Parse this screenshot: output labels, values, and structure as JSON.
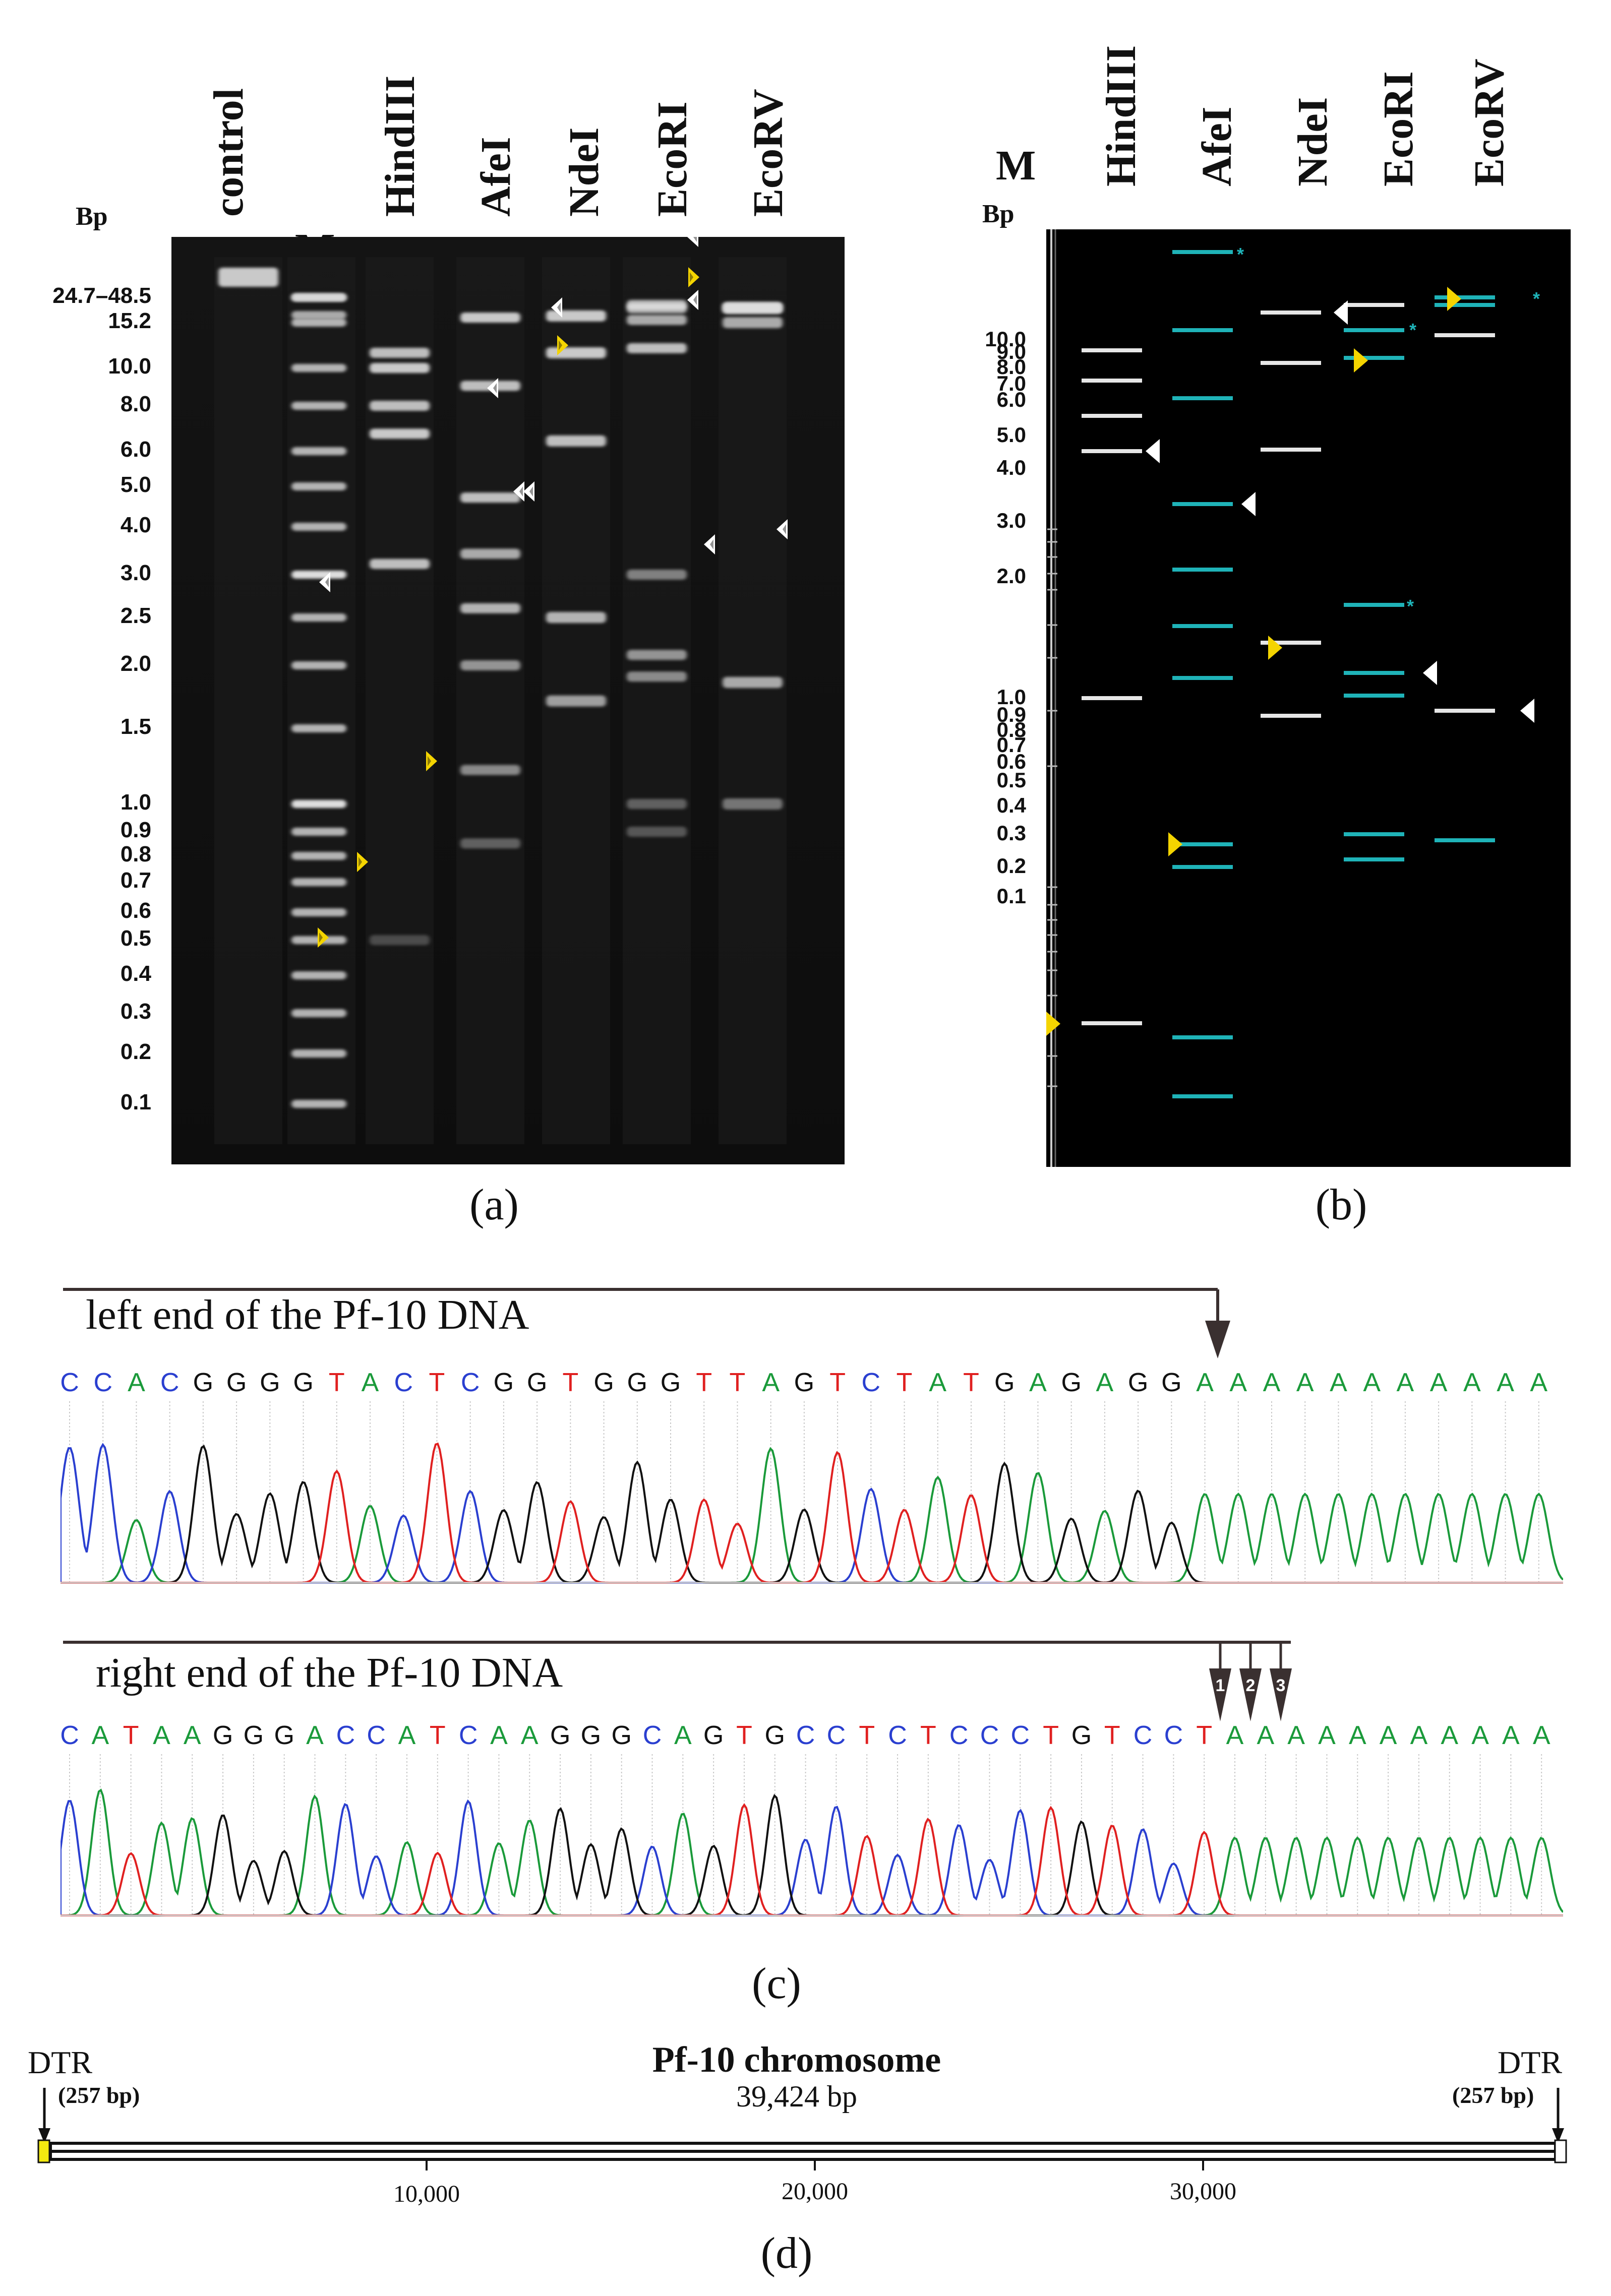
{
  "panels": {
    "a": "(a)",
    "b": "(b)",
    "c": "(c)",
    "d": "(d)"
  },
  "gel_a": {
    "bp_title": "Bp",
    "lanes": [
      "control",
      "M",
      "HindIII",
      "AfeI",
      "NdeI",
      "EcoRI",
      "EcoRV"
    ],
    "bp_labels": [
      "24.7–48.5",
      "15.2",
      "10.0",
      "8.0",
      "6.0",
      "5.0",
      "4.0",
      "3.0",
      "2.5",
      "2.0",
      "1.5",
      "1.0",
      "0.9",
      "0.8",
      "0.7",
      "0.6",
      "0.5",
      "0.4",
      "0.3",
      "0.2",
      "0.1"
    ]
  },
  "gel_b": {
    "bp_title": "Bp",
    "lanes": [
      "M",
      "HindIII",
      "AfeI",
      "NdeI",
      "EcoRI",
      "EcoRV"
    ],
    "bp_labels": [
      "10.0",
      "9.0",
      "8.0",
      "7.0",
      "6.0",
      "5.0",
      "4.0",
      "3.0",
      "2.0",
      "1.0",
      "0.9",
      "0.8",
      "0.7",
      "0.6",
      "0.5",
      "0.4",
      "0.3",
      "0.2",
      "0.1"
    ],
    "asterisk": "*"
  },
  "chromatogram": {
    "left_title": "left end of the Pf-10 DNA",
    "left_sequence": "CCACGGGGTACTCGGTGGGTTAGTCTATGAGAGGAAAAAAAAAAA",
    "right_title": "right end of the Pf-10 DNA",
    "right_sequence": "CATAAGGGACCATCAAGGGCAGTGCCTCTCCCTGTCCTAAAAAAAAAAA",
    "arrow_numbers": [
      "1",
      "2",
      "3"
    ]
  },
  "chromosome": {
    "title": "Pf-10 chromosome",
    "length": "39,424 bp",
    "left_dtr": "DTR",
    "left_dtr_size": "(257 bp)",
    "right_dtr": "DTR",
    "right_dtr_size": "(257 bp)",
    "ticks": [
      "10,000",
      "20,000",
      "30,000"
    ]
  },
  "colors": {
    "A": "#1a9a3a",
    "C": "#2a3fd0",
    "G": "#111111",
    "T": "#e02020",
    "marker_yellow": "#f4d400",
    "marker_white": "#ffffff",
    "cyan_band": "#1fb3b8"
  }
}
